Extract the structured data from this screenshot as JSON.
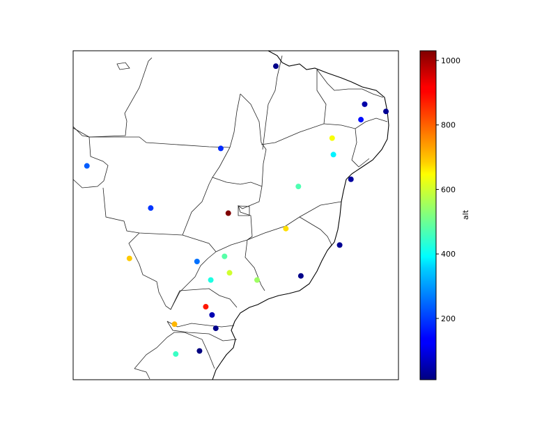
{
  "chart_data": {
    "type": "scatter",
    "title": "",
    "xlabel": "",
    "ylabel": "",
    "colorbar": {
      "label": "alt",
      "range": [
        10,
        1030
      ],
      "ticks": [
        200,
        400,
        600,
        800,
        1000
      ],
      "colormap": "jet"
    },
    "map_extent": {
      "lon": [
        -60,
        -34
      ],
      "lat": [
        -34,
        -2
      ]
    },
    "points": [
      {
        "lon": -43.8,
        "lat": -3.5,
        "alt": 20
      },
      {
        "lon": -36.7,
        "lat": -7.2,
        "alt": 50
      },
      {
        "lon": -35.0,
        "lat": -7.9,
        "alt": 30
      },
      {
        "lon": -37.0,
        "lat": -8.7,
        "alt": 150
      },
      {
        "lon": -39.3,
        "lat": -10.5,
        "alt": 640
      },
      {
        "lon": -39.2,
        "lat": -12.1,
        "alt": 380
      },
      {
        "lon": -48.2,
        "lat": -11.5,
        "alt": 180
      },
      {
        "lon": -58.9,
        "lat": -13.2,
        "alt": 230
      },
      {
        "lon": -37.8,
        "lat": -14.5,
        "alt": 40
      },
      {
        "lon": -42.0,
        "lat": -15.2,
        "alt": 470
      },
      {
        "lon": -53.8,
        "lat": -17.3,
        "alt": 190
      },
      {
        "lon": -47.6,
        "lat": -17.8,
        "alt": 1030
      },
      {
        "lon": -43.0,
        "lat": -19.3,
        "alt": 680
      },
      {
        "lon": -38.7,
        "lat": -20.9,
        "alt": 30
      },
      {
        "lon": -55.5,
        "lat": -22.2,
        "alt": 700
      },
      {
        "lon": -50.1,
        "lat": -22.5,
        "alt": 250
      },
      {
        "lon": -47.9,
        "lat": -22.0,
        "alt": 480
      },
      {
        "lon": -47.5,
        "lat": -23.6,
        "alt": 600
      },
      {
        "lon": -45.3,
        "lat": -24.3,
        "alt": 550
      },
      {
        "lon": -41.8,
        "lat": -23.9,
        "alt": 20
      },
      {
        "lon": -49.0,
        "lat": -24.3,
        "alt": 420
      },
      {
        "lon": -49.4,
        "lat": -26.9,
        "alt": 880
      },
      {
        "lon": -48.9,
        "lat": -27.7,
        "alt": 60
      },
      {
        "lon": -51.9,
        "lat": -28.6,
        "alt": 720
      },
      {
        "lon": -48.6,
        "lat": -29.0,
        "alt": 20
      },
      {
        "lon": -51.8,
        "lat": -31.5,
        "alt": 450
      },
      {
        "lon": -49.9,
        "lat": -31.2,
        "alt": 10
      }
    ]
  }
}
